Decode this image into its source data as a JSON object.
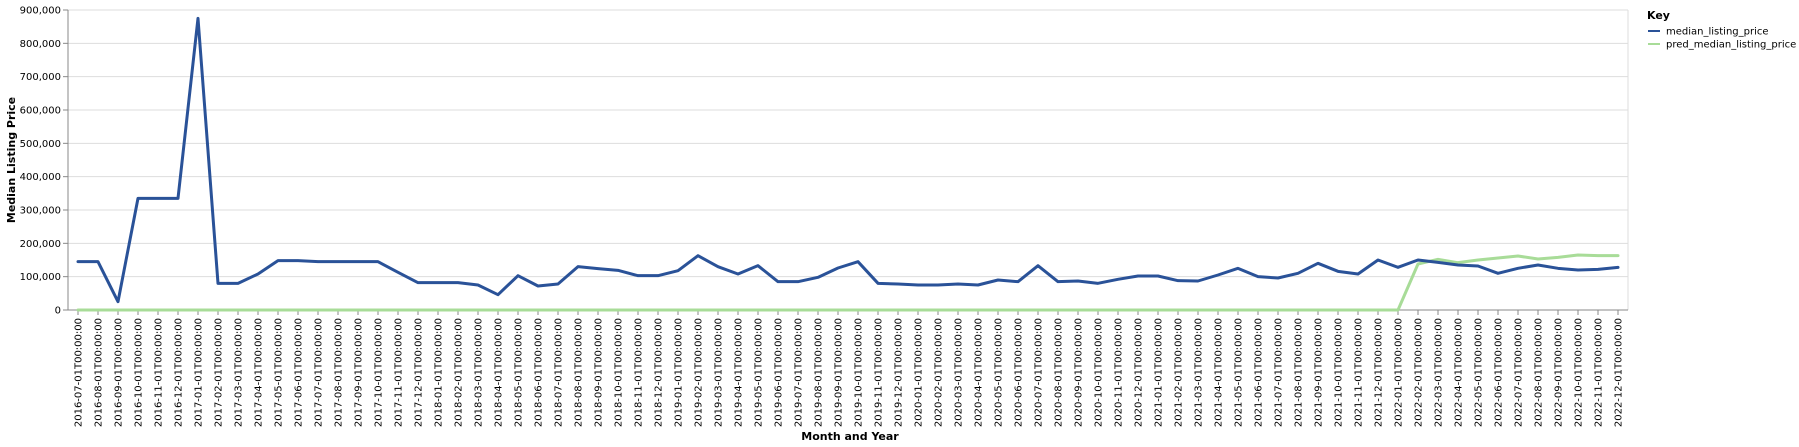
{
  "chart_data": {
    "type": "line",
    "xlabel": "Month and Year",
    "ylabel": "Median Listing Price",
    "ylim": [
      0,
      900000
    ],
    "yticks": [
      0,
      100000,
      200000,
      300000,
      400000,
      500000,
      600000,
      700000,
      800000,
      900000
    ],
    "ytick_labels": [
      "0",
      "100,000",
      "200,000",
      "300,000",
      "400,000",
      "500,000",
      "600,000",
      "700,000",
      "800,000",
      "900,000"
    ],
    "grid": true,
    "legend": {
      "title": "Key",
      "placement": "top-right"
    },
    "x": [
      "2016-07-01T00:00:00",
      "2016-08-01T00:00:00",
      "2016-09-01T00:00:00",
      "2016-10-01T00:00:00",
      "2016-11-01T00:00:00",
      "2016-12-01T00:00:00",
      "2017-01-01T00:00:00",
      "2017-02-01T00:00:00",
      "2017-03-01T00:00:00",
      "2017-04-01T00:00:00",
      "2017-05-01T00:00:00",
      "2017-06-01T00:00:00",
      "2017-07-01T00:00:00",
      "2017-08-01T00:00:00",
      "2017-09-01T00:00:00",
      "2017-10-01T00:00:00",
      "2017-11-01T00:00:00",
      "2017-12-01T00:00:00",
      "2018-01-01T00:00:00",
      "2018-02-01T00:00:00",
      "2018-03-01T00:00:00",
      "2018-04-01T00:00:00",
      "2018-05-01T00:00:00",
      "2018-06-01T00:00:00",
      "2018-07-01T00:00:00",
      "2018-08-01T00:00:00",
      "2018-09-01T00:00:00",
      "2018-10-01T00:00:00",
      "2018-11-01T00:00:00",
      "2018-12-01T00:00:00",
      "2019-01-01T00:00:00",
      "2019-02-01T00:00:00",
      "2019-03-01T00:00:00",
      "2019-04-01T00:00:00",
      "2019-05-01T00:00:00",
      "2019-06-01T00:00:00",
      "2019-07-01T00:00:00",
      "2019-08-01T00:00:00",
      "2019-09-01T00:00:00",
      "2019-10-01T00:00:00",
      "2019-11-01T00:00:00",
      "2019-12-01T00:00:00",
      "2020-01-01T00:00:00",
      "2020-02-01T00:00:00",
      "2020-03-01T00:00:00",
      "2020-04-01T00:00:00",
      "2020-05-01T00:00:00",
      "2020-06-01T00:00:00",
      "2020-07-01T00:00:00",
      "2020-08-01T00:00:00",
      "2020-09-01T00:00:00",
      "2020-10-01T00:00:00",
      "2020-11-01T00:00:00",
      "2020-12-01T00:00:00",
      "2021-01-01T00:00:00",
      "2021-02-01T00:00:00",
      "2021-03-01T00:00:00",
      "2021-04-01T00:00:00",
      "2021-05-01T00:00:00",
      "2021-06-01T00:00:00",
      "2021-07-01T00:00:00",
      "2021-08-01T00:00:00",
      "2021-09-01T00:00:00",
      "2021-10-01T00:00:00",
      "2021-11-01T00:00:00",
      "2021-12-01T00:00:00",
      "2022-01-01T00:00:00",
      "2022-02-01T00:00:00",
      "2022-03-01T00:00:00",
      "2022-04-01T00:00:00",
      "2022-05-01T00:00:00",
      "2022-06-01T00:00:00",
      "2022-07-01T00:00:00",
      "2022-08-01T00:00:00",
      "2022-09-01T00:00:00",
      "2022-10-01T00:00:00",
      "2022-11-01T00:00:00",
      "2022-12-01T00:00:00"
    ],
    "series": [
      {
        "name": "median_listing_price",
        "color": "#2a5298",
        "values": [
          145000,
          145000,
          25000,
          335000,
          335000,
          335000,
          875000,
          80000,
          80000,
          108000,
          148000,
          148000,
          145000,
          145000,
          145000,
          145000,
          113000,
          82000,
          82000,
          82000,
          75000,
          46000,
          103000,
          72000,
          78000,
          130000,
          124000,
          119000,
          103000,
          103000,
          118000,
          163000,
          130000,
          108000,
          133000,
          85000,
          85000,
          98000,
          126000,
          145000,
          80000,
          78000,
          75000,
          75000,
          78000,
          75000,
          90000,
          85000,
          133000,
          85000,
          87000,
          80000,
          92000,
          102000,
          102000,
          88000,
          87000,
          105000,
          125000,
          100000,
          96000,
          110000,
          140000,
          116000,
          108000,
          150000,
          128000,
          150000,
          143000,
          135000,
          132000,
          110000,
          125000,
          135000,
          125000,
          120000,
          122000,
          128000
        ]
      },
      {
        "name": "pred_median_listing_price",
        "color": "#a8dc98",
        "values": [
          0,
          0,
          0,
          0,
          0,
          0,
          0,
          0,
          0,
          0,
          0,
          0,
          0,
          0,
          0,
          0,
          0,
          0,
          0,
          0,
          0,
          0,
          0,
          0,
          0,
          0,
          0,
          0,
          0,
          0,
          0,
          0,
          0,
          0,
          0,
          0,
          0,
          0,
          0,
          0,
          0,
          0,
          0,
          0,
          0,
          0,
          0,
          0,
          0,
          0,
          0,
          0,
          0,
          0,
          0,
          0,
          0,
          0,
          0,
          0,
          0,
          0,
          0,
          0,
          0,
          0,
          0,
          138000,
          152000,
          142000,
          150000,
          156000,
          162000,
          153000,
          158000,
          165000,
          163000,
          163000
        ]
      }
    ]
  }
}
